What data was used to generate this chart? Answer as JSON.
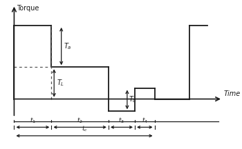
{
  "line_color": "#1a1a1a",
  "dashed_color": "#555555",
  "T_high": 3.0,
  "T_mid": 1.3,
  "T_neg": -0.5,
  "T_zero": 0.0,
  "t0": 0.5,
  "t1": 2.2,
  "t2": 4.8,
  "t3": 6.0,
  "t4": 6.9,
  "t6": 8.5,
  "t_end": 9.3,
  "sep_y": -0.9,
  "y_arr1": -1.15,
  "y_arr2": -1.5,
  "xlim": [
    -0.1,
    10.2
  ],
  "ylim": [
    -2.0,
    4.0
  ],
  "xlabel": "Time",
  "ylabel": "Torque"
}
